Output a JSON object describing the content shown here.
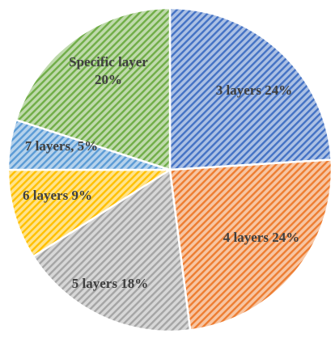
{
  "chart_data": {
    "type": "pie",
    "title": "",
    "start": "top, clockwise",
    "pattern": "diagonal hatch",
    "slices": [
      {
        "label": "3 layers 24%",
        "value": 24,
        "color": "#4472c4"
      },
      {
        "label": "4 layers  24%",
        "value": 24,
        "color": "#ed7d31"
      },
      {
        "label": "5 layers 18%",
        "value": 18,
        "color": "#a5a5a5"
      },
      {
        "label": "6 layers 9%",
        "value": 9,
        "color": "#ffc000"
      },
      {
        "label": "7 layers, 5%",
        "value": 5,
        "color": "#5b9bd5"
      },
      {
        "label": [
          "Specific layer",
          "20%"
        ],
        "value": 20,
        "color": "#70ad47"
      }
    ]
  }
}
